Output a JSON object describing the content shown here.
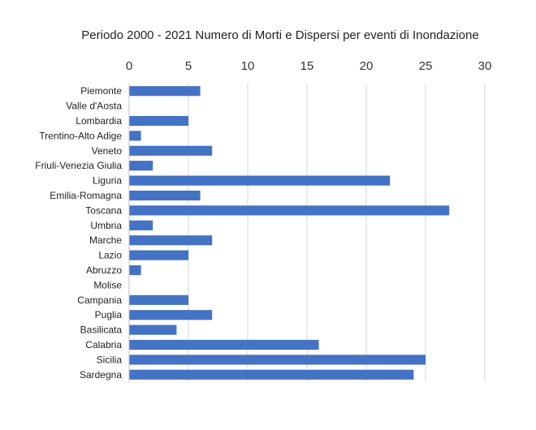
{
  "chart_data": {
    "type": "bar",
    "orientation": "horizontal",
    "title": "Periodo 2000 - 2021 Numero di Morti e Dispersi per eventi di Inondazione",
    "xlabel": "",
    "ylabel": "",
    "xlim": [
      0,
      30
    ],
    "xticks": [
      0,
      5,
      10,
      15,
      20,
      25,
      30
    ],
    "x_axis_position": "top",
    "grid": true,
    "legend": "none",
    "bar_color": "#4472c4",
    "categories": [
      "Piemonte",
      "Valle d'Aosta",
      "Lombardia",
      "Trentino-Alto Adige",
      "Veneto",
      "Friuli-Venezia Giulia",
      "Liguria",
      "Emilia-Romagna",
      "Toscana",
      "Umbria",
      "Marche",
      "Lazio",
      "Abruzzo",
      "Molise",
      "Campania",
      "Puglia",
      "Basilicata",
      "Calabria",
      "Sicilia",
      "Sardegna"
    ],
    "values": [
      6,
      0,
      5,
      1,
      7,
      2,
      22,
      6,
      27,
      2,
      7,
      5,
      1,
      0,
      5,
      7,
      4,
      16,
      25,
      24
    ]
  }
}
